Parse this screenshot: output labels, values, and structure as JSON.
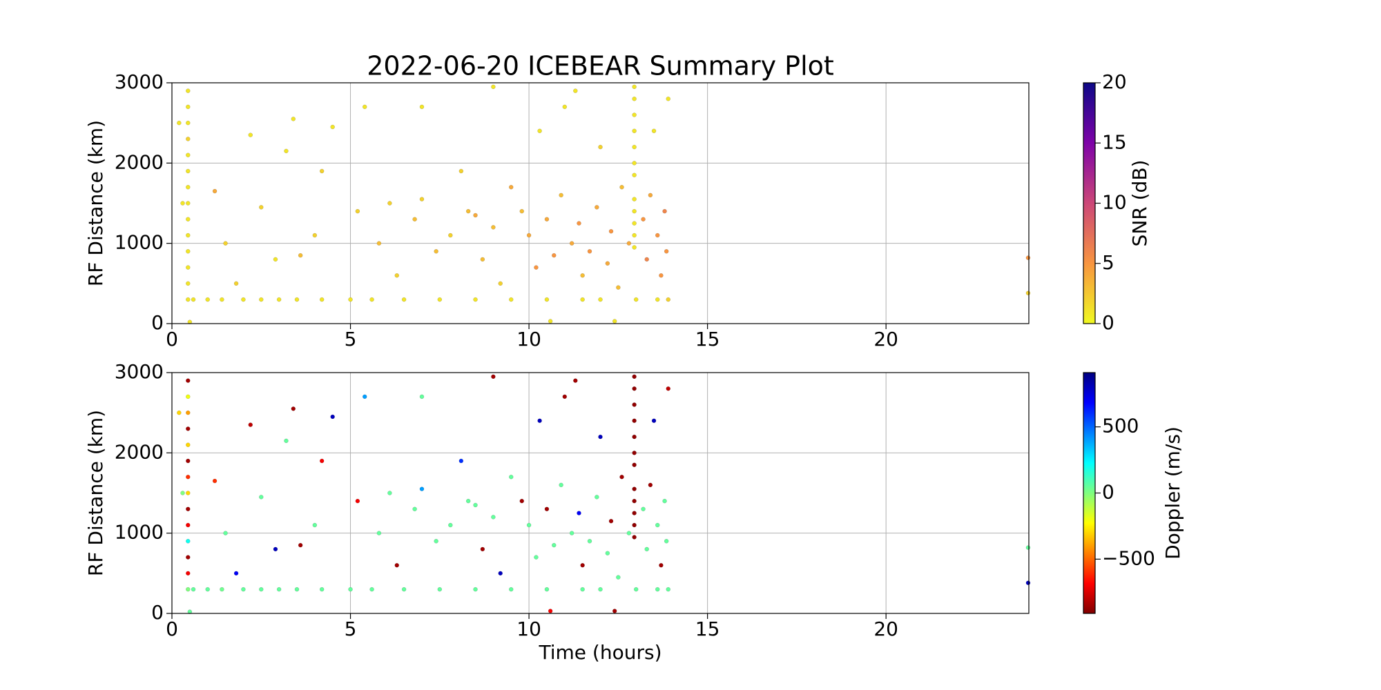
{
  "chart_data": [
    {
      "type": "scatter",
      "title": "2022-06-20 ICEBEAR Summary Plot",
      "ylabel": "RF Distance (km)",
      "xlim": [
        0,
        24
      ],
      "xticks": [
        0,
        5,
        10,
        15,
        20
      ],
      "ylim": [
        0,
        3000
      ],
      "yticks": [
        0,
        1000,
        2000,
        3000
      ],
      "grid": true,
      "colormap": "plasma_r",
      "clim": [
        0,
        20
      ],
      "cticks": [
        0,
        5,
        10,
        15,
        20
      ],
      "clabel": "SNR (dB)",
      "x": [
        0.2,
        0.3,
        0.45,
        0.45,
        0.45,
        0.45,
        0.45,
        0.45,
        0.45,
        0.45,
        0.45,
        0.45,
        0.45,
        0.45,
        0.45,
        0.45,
        0.6,
        1.0,
        1.4,
        2.0,
        2.5,
        3.0,
        3.5,
        4.2,
        5.0,
        5.6,
        6.5,
        1.2,
        1.5,
        1.8,
        2.2,
        2.5,
        2.9,
        3.2,
        3.6,
        4.0,
        4.2,
        4.5,
        5.2,
        5.4,
        5.8,
        6.1,
        6.3,
        6.8,
        7.0,
        7.0,
        7.4,
        7.8,
        8.1,
        8.3,
        8.5,
        8.7,
        9.0,
        9.2,
        9.5,
        9.8,
        10.0,
        10.2,
        10.3,
        10.5,
        10.7,
        10.9,
        11.0,
        11.2,
        11.4,
        11.5,
        11.7,
        11.9,
        12.0,
        12.2,
        12.3,
        12.5,
        12.6,
        12.8,
        12.95,
        12.95,
        12.95,
        12.95,
        12.95,
        12.95,
        12.95,
        12.95,
        12.95,
        12.95,
        12.95,
        12.95,
        13.2,
        13.3,
        13.4,
        13.5,
        13.6,
        13.7,
        13.8,
        13.85,
        13.9,
        13.9,
        13.6,
        13.0,
        12.0,
        11.5,
        10.5,
        9.5,
        8.5,
        7.5,
        23.98,
        23.98,
        10.6,
        12.4,
        0.5,
        3.4,
        9.0,
        11.3
      ],
      "values": [
        2500,
        1500,
        2900,
        2700,
        2500,
        2300,
        2100,
        1900,
        1700,
        1500,
        1300,
        1100,
        900,
        700,
        500,
        300,
        300,
        300,
        300,
        300,
        300,
        300,
        300,
        300,
        300,
        300,
        300,
        1650,
        1000,
        500,
        2350,
        1450,
        800,
        2150,
        850,
        1100,
        1900,
        2450,
        1400,
        2700,
        1000,
        1500,
        600,
        1300,
        1550,
        2700,
        900,
        1100,
        1900,
        1400,
        1350,
        800,
        1200,
        500,
        1700,
        1400,
        1100,
        700,
        2400,
        1300,
        850,
        1600,
        2700,
        1000,
        1250,
        600,
        900,
        1450,
        2200,
        750,
        1150,
        450,
        1700,
        1000,
        2950,
        2800,
        2600,
        2400,
        2200,
        2000,
        1850,
        1550,
        1400,
        1250,
        1100,
        950,
        1300,
        800,
        1600,
        2400,
        1100,
        600,
        1400,
        900,
        2800,
        300,
        300,
        300,
        300,
        300,
        300,
        300,
        300,
        300,
        820,
        380,
        30,
        30,
        20,
        2550,
        2950,
        2900
      ],
      "color_values": [
        1,
        1,
        1,
        1,
        1,
        2,
        1,
        1,
        1,
        1,
        1,
        1,
        1,
        1,
        1,
        1,
        1,
        1,
        1,
        1,
        1,
        1,
        1,
        1,
        1,
        1,
        1,
        4,
        2,
        2,
        1,
        2,
        1,
        1,
        3,
        2,
        2,
        1,
        2,
        1,
        3,
        2,
        2,
        3,
        2,
        1,
        3,
        2,
        2,
        3,
        4,
        3,
        3,
        2,
        4,
        3,
        4,
        5,
        1,
        4,
        5,
        3,
        1,
        4,
        5,
        3,
        5,
        4,
        2,
        4,
        5,
        3,
        3,
        4,
        1,
        1,
        1,
        1,
        1,
        1,
        1,
        1,
        1,
        1,
        1,
        1,
        5,
        6,
        4,
        1,
        5,
        5,
        6,
        5,
        1,
        2,
        1,
        1,
        1,
        1,
        1,
        1,
        1,
        1,
        5,
        2,
        1,
        1,
        1,
        1,
        1,
        1
      ]
    },
    {
      "type": "scatter",
      "xlabel": "Time (hours)",
      "ylabel": "RF Distance (km)",
      "xlim": [
        0,
        24
      ],
      "xticks": [
        0,
        5,
        10,
        15,
        20
      ],
      "ylim": [
        0,
        3000
      ],
      "yticks": [
        0,
        1000,
        2000,
        3000
      ],
      "grid": true,
      "colormap": "jet_r",
      "clim": [
        -910,
        910
      ],
      "cticks": [
        {
          "value": -500,
          "label": "−500"
        },
        0,
        500
      ],
      "clabel": "Doppler (m/s)",
      "x": [
        0.2,
        0.3,
        0.45,
        0.45,
        0.45,
        0.45,
        0.45,
        0.45,
        0.45,
        0.45,
        0.45,
        0.45,
        0.45,
        0.45,
        0.45,
        0.45,
        0.6,
        1.0,
        1.4,
        2.0,
        2.5,
        3.0,
        3.5,
        4.2,
        5.0,
        5.6,
        6.5,
        1.2,
        1.5,
        1.8,
        2.2,
        2.5,
        2.9,
        3.2,
        3.6,
        4.0,
        4.2,
        4.5,
        5.2,
        5.4,
        5.8,
        6.1,
        6.3,
        6.8,
        7.0,
        7.0,
        7.4,
        7.8,
        8.1,
        8.3,
        8.5,
        8.7,
        9.0,
        9.2,
        9.5,
        9.8,
        10.0,
        10.2,
        10.3,
        10.5,
        10.7,
        10.9,
        11.0,
        11.2,
        11.4,
        11.5,
        11.7,
        11.9,
        12.0,
        12.2,
        12.3,
        12.5,
        12.6,
        12.8,
        12.95,
        12.95,
        12.95,
        12.95,
        12.95,
        12.95,
        12.95,
        12.95,
        12.95,
        12.95,
        12.95,
        12.95,
        13.2,
        13.3,
        13.4,
        13.5,
        13.6,
        13.7,
        13.8,
        13.85,
        13.9,
        13.9,
        13.6,
        13.0,
        12.0,
        11.5,
        10.5,
        9.5,
        8.5,
        7.5,
        23.98,
        23.98,
        10.6,
        12.4,
        0.5,
        3.4,
        9.0,
        11.3
      ],
      "values": [
        2500,
        1500,
        2900,
        2700,
        2500,
        2300,
        2100,
        1900,
        1700,
        1500,
        1300,
        1100,
        900,
        700,
        500,
        300,
        300,
        300,
        300,
        300,
        300,
        300,
        300,
        300,
        300,
        300,
        300,
        1650,
        1000,
        500,
        2350,
        1450,
        800,
        2150,
        850,
        1100,
        1900,
        2450,
        1400,
        2700,
        1000,
        1500,
        600,
        1300,
        1550,
        2700,
        900,
        1100,
        1900,
        1400,
        1350,
        800,
        1200,
        500,
        1700,
        1400,
        1100,
        700,
        2400,
        1300,
        850,
        1600,
        2700,
        1000,
        1250,
        600,
        900,
        1450,
        2200,
        750,
        1150,
        450,
        1700,
        1000,
        2950,
        2800,
        2600,
        2400,
        2200,
        2000,
        1850,
        1550,
        1400,
        1250,
        1100,
        950,
        1300,
        800,
        1600,
        2400,
        1100,
        600,
        1400,
        900,
        2800,
        300,
        300,
        300,
        300,
        300,
        300,
        300,
        300,
        300,
        820,
        380,
        30,
        30,
        20,
        2550,
        2950,
        2900
      ],
      "color_values": [
        -300,
        0,
        -850,
        -200,
        -400,
        -850,
        -300,
        -850,
        -600,
        -300,
        -850,
        -700,
        200,
        -850,
        -700,
        0,
        50,
        50,
        30,
        50,
        50,
        50,
        50,
        50,
        50,
        50,
        50,
        -600,
        50,
        700,
        -800,
        50,
        800,
        50,
        -850,
        50,
        -700,
        800,
        -700,
        400,
        50,
        50,
        -850,
        50,
        400,
        50,
        50,
        50,
        600,
        50,
        50,
        -850,
        50,
        800,
        50,
        -850,
        50,
        50,
        800,
        -850,
        50,
        50,
        -850,
        50,
        700,
        -850,
        50,
        50,
        800,
        50,
        -850,
        50,
        -850,
        50,
        -880,
        -880,
        -880,
        -880,
        -880,
        -880,
        -880,
        -880,
        -880,
        -880,
        -880,
        -880,
        50,
        50,
        -850,
        800,
        50,
        -850,
        50,
        50,
        -800,
        50,
        50,
        50,
        50,
        50,
        50,
        50,
        50,
        50,
        50,
        800,
        -700,
        -850,
        50,
        -850,
        -850,
        -850
      ]
    }
  ]
}
